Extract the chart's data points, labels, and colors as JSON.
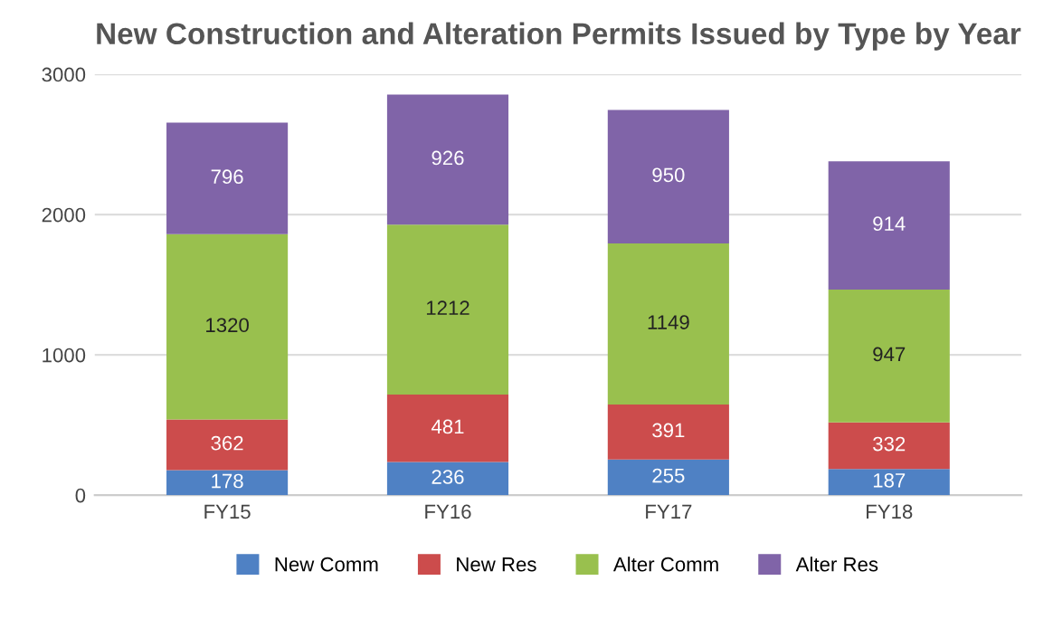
{
  "chart_data": {
    "type": "bar",
    "title": "New Construction and Alteration Permits Issued by Type by Year",
    "categories": [
      "FY15",
      "FY16",
      "FY17",
      "FY18"
    ],
    "stacked": true,
    "series": [
      {
        "name": "New Comm",
        "color": "#4f81c4",
        "values": [
          178,
          236,
          255,
          187
        ]
      },
      {
        "name": "New Res",
        "color": "#cc4c4c",
        "values": [
          362,
          481,
          391,
          332
        ]
      },
      {
        "name": "Alter Comm",
        "color": "#99c04e",
        "values": [
          1320,
          1212,
          1149,
          947
        ]
      },
      {
        "name": "Alter Res",
        "color": "#8064a8",
        "values": [
          796,
          926,
          950,
          914
        ]
      }
    ],
    "ylim": [
      0,
      3000
    ],
    "yticks": [
      0,
      1000,
      2000,
      3000
    ],
    "grid": "y",
    "legend": "bottom",
    "data_labels": true
  }
}
